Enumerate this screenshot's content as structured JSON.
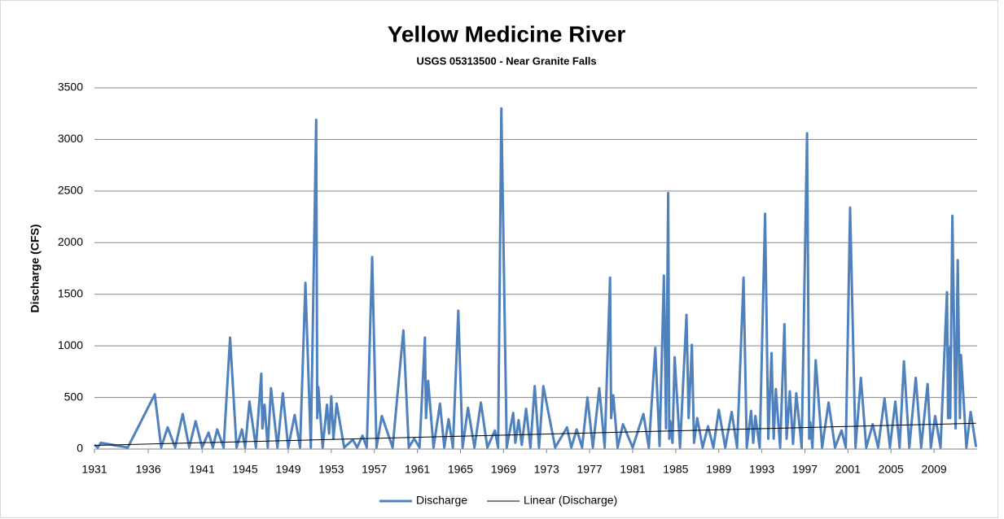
{
  "chart_data": {
    "type": "line",
    "title": "Yellow Medicine River",
    "subtitle": "USGS 05313500 - Near Granite Falls",
    "y_label": "Discharge (CFS)",
    "xlim": [
      1931,
      2013
    ],
    "xticks": [
      1931,
      1936,
      1941,
      1945,
      1949,
      1953,
      1957,
      1961,
      1965,
      1969,
      1973,
      1977,
      1981,
      1985,
      1989,
      1993,
      1997,
      2001,
      2005,
      2009
    ],
    "ylim": [
      0,
      3500
    ],
    "yticks": [
      0,
      500,
      1000,
      1500,
      2000,
      2500,
      3000,
      3500
    ],
    "grid": true,
    "legend": "bottom",
    "series": [
      {
        "name": "Discharge",
        "color": "#4f81bd",
        "x": [
          1931.0,
          1931.3,
          1931.6,
          1934.1,
          1936.6,
          1937.2,
          1937.8,
          1938.5,
          1939.2,
          1939.8,
          1940.4,
          1941.0,
          1941.6,
          1942.0,
          1942.4,
          1943.0,
          1943.6,
          1944.2,
          1944.7,
          1945.0,
          1945.4,
          1946.0,
          1946.5,
          1946.6,
          1946.8,
          1947.1,
          1947.4,
          1948.0,
          1948.5,
          1949.0,
          1949.6,
          1950.1,
          1950.6,
          1951.1,
          1951.6,
          1951.7,
          1951.8,
          1952.2,
          1952.6,
          1952.8,
          1953.0,
          1953.2,
          1953.5,
          1954.2,
          1955.0,
          1955.4,
          1955.9,
          1956.3,
          1956.8,
          1957.2,
          1957.7,
          1958.7,
          1959.7,
          1960.2,
          1960.7,
          1961.2,
          1961.7,
          1961.8,
          1962.0,
          1962.5,
          1963.1,
          1963.5,
          1963.9,
          1964.3,
          1964.8,
          1965.2,
          1965.7,
          1966.3,
          1966.9,
          1967.5,
          1968.2,
          1968.5,
          1968.8,
          1969.3,
          1969.9,
          1970.1,
          1970.4,
          1970.7,
          1971.1,
          1971.5,
          1971.9,
          1972.3,
          1972.7,
          1973.8,
          1974.9,
          1975.3,
          1975.8,
          1976.3,
          1976.8,
          1977.3,
          1977.9,
          1978.4,
          1978.9,
          1979.0,
          1979.2,
          1979.6,
          1980.1,
          1981.0,
          1982.0,
          1982.5,
          1983.1,
          1983.5,
          1983.9,
          1984.1,
          1984.3,
          1984.4,
          1984.5,
          1984.7,
          1984.9,
          1985.4,
          1986.0,
          1986.2,
          1986.5,
          1986.7,
          1987.0,
          1987.5,
          1988.0,
          1988.5,
          1989.0,
          1989.6,
          1990.2,
          1990.7,
          1991.3,
          1991.6,
          1992.0,
          1992.2,
          1992.4,
          1992.8,
          1993.3,
          1993.6,
          1993.9,
          1994.1,
          1994.3,
          1994.7,
          1995.1,
          1995.3,
          1995.6,
          1995.9,
          1996.2,
          1996.7,
          1997.2,
          1997.4,
          1997.5,
          1997.7,
          1998.0,
          1998.6,
          1999.2,
          1999.8,
          2000.4,
          2000.8,
          2001.2,
          2001.7,
          2002.2,
          2002.7,
          2003.3,
          2003.8,
          2004.4,
          2004.9,
          2005.4,
          2005.8,
          2006.2,
          2006.7,
          2007.3,
          2007.8,
          2008.4,
          2008.7,
          2009.1,
          2009.6,
          2010.2,
          2010.3,
          2010.4,
          2010.5,
          2010.7,
          2011.0,
          2011.2,
          2011.4,
          2011.5,
          2012.0,
          2012.4,
          2012.9
        ],
        "values": [
          40,
          15,
          60,
          15,
          530,
          15,
          210,
          15,
          340,
          15,
          270,
          15,
          160,
          15,
          190,
          15,
          1080,
          15,
          190,
          15,
          460,
          15,
          730,
          200,
          430,
          15,
          590,
          15,
          540,
          15,
          330,
          15,
          1610,
          15,
          3190,
          300,
          600,
          15,
          430,
          150,
          510,
          100,
          440,
          15,
          90,
          15,
          130,
          15,
          1860,
          15,
          320,
          15,
          1150,
          15,
          100,
          15,
          1080,
          300,
          660,
          15,
          440,
          15,
          290,
          15,
          1340,
          15,
          400,
          15,
          450,
          15,
          180,
          15,
          3300,
          15,
          350,
          60,
          280,
          40,
          390,
          15,
          610,
          15,
          610,
          15,
          210,
          15,
          190,
          15,
          500,
          15,
          590,
          15,
          1660,
          300,
          520,
          15,
          240,
          15,
          340,
          15,
          980,
          30,
          1680,
          200,
          2480,
          100,
          270,
          60,
          890,
          15,
          1300,
          300,
          1010,
          60,
          300,
          15,
          220,
          15,
          380,
          15,
          360,
          15,
          1660,
          15,
          370,
          60,
          320,
          15,
          2280,
          100,
          930,
          100,
          580,
          15,
          1210,
          100,
          560,
          50,
          540,
          15,
          3060,
          100,
          260,
          15,
          860,
          15,
          450,
          15,
          180,
          15,
          2340,
          15,
          690,
          15,
          240,
          15,
          490,
          15,
          460,
          15,
          850,
          15,
          690,
          15,
          630,
          15,
          320,
          15,
          1520,
          300,
          980,
          300,
          2260,
          200,
          1830,
          300,
          910,
          15,
          360,
          20
        ]
      },
      {
        "name": "Linear (Discharge)",
        "color": "#000000",
        "x": [
          1931.0,
          2012.9
        ],
        "values": [
          35,
          250
        ]
      }
    ]
  }
}
